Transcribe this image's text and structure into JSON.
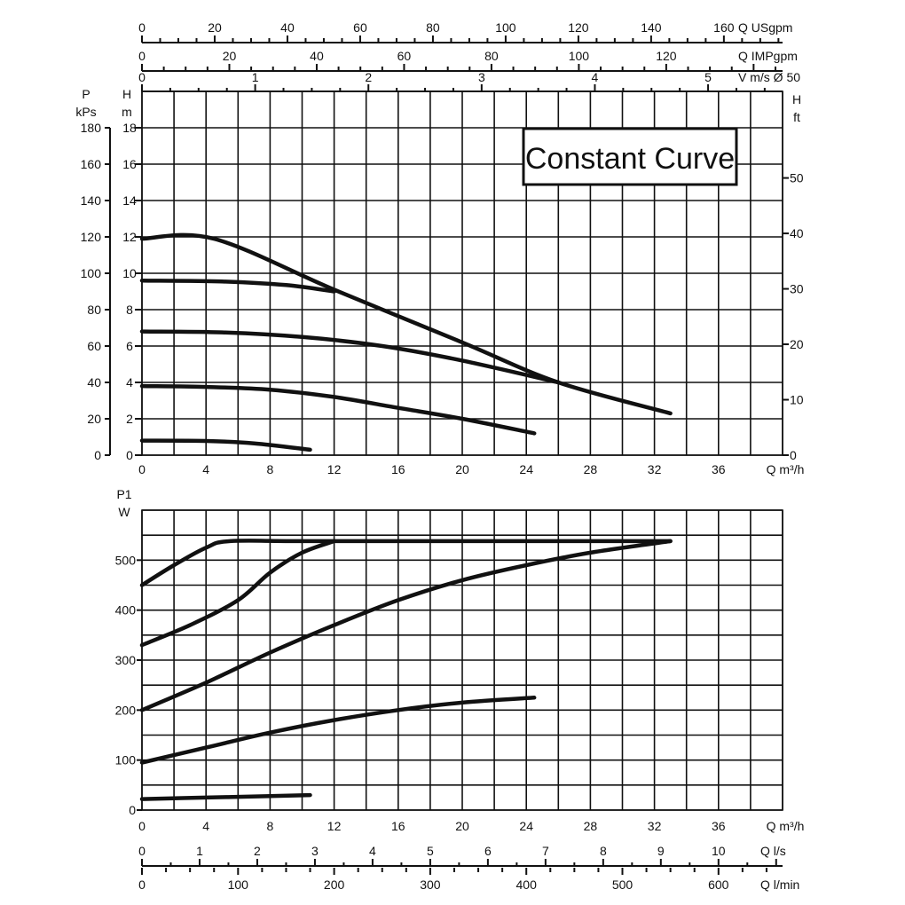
{
  "chart_data": [
    {
      "type": "line",
      "title": "Constant Curve",
      "xlabel": "Q m³/h",
      "ylabel_left_outer": [
        "P",
        "kPs"
      ],
      "ylabel_left_inner": [
        "H",
        "m"
      ],
      "ylabel_right": [
        "H",
        "ft"
      ],
      "xlim": [
        0,
        40
      ],
      "ylim": [
        0,
        20
      ],
      "grid": true,
      "x_ticks": [
        0,
        4,
        8,
        12,
        16,
        20,
        24,
        28,
        32,
        36
      ],
      "y_ticks_m": [
        0,
        2,
        4,
        6,
        8,
        10,
        12,
        14,
        16,
        18
      ],
      "y_ticks_kpa": [
        0,
        20,
        40,
        60,
        80,
        100,
        120,
        140,
        160,
        180
      ],
      "y_ticks_ft": [
        0,
        10,
        20,
        30,
        40,
        50
      ],
      "top_axes": [
        {
          "label": "Q USgpm",
          "ticks": [
            "0",
            "20",
            "40",
            "60",
            "80",
            "100",
            "120",
            "140",
            "160"
          ],
          "values": [
            0,
            20,
            40,
            60,
            80,
            100,
            120,
            140,
            160
          ]
        },
        {
          "label": "Q IMPgpm",
          "ticks": [
            "0",
            "20",
            "40",
            "60",
            "80",
            "100",
            "120"
          ],
          "values": [
            0,
            20,
            40,
            60,
            80,
            100,
            120
          ]
        },
        {
          "label": "V m/s Ø 50",
          "ticks": [
            "0",
            "1",
            "2",
            "3",
            "4",
            "5"
          ],
          "values": [
            0,
            1,
            2,
            3,
            4,
            5
          ]
        }
      ],
      "series": [
        {
          "x": [
            0,
            4.5,
            12,
            20,
            26,
            33
          ],
          "y": [
            11.9,
            11.9,
            9.1,
            6.2,
            4.0,
            2.3
          ]
        },
        {
          "x": [
            0,
            5,
            9,
            12
          ],
          "y": [
            9.6,
            9.55,
            9.35,
            9.0
          ]
        },
        {
          "x": [
            0,
            5,
            10,
            15,
            20,
            26
          ],
          "y": [
            6.8,
            6.75,
            6.5,
            6.0,
            5.2,
            4.0
          ]
        },
        {
          "x": [
            0,
            4,
            8,
            12,
            16,
            20,
            24.5
          ],
          "y": [
            3.8,
            3.75,
            3.6,
            3.2,
            2.6,
            2.0,
            1.2
          ]
        },
        {
          "x": [
            0,
            4,
            7,
            10.5
          ],
          "y": [
            0.8,
            0.78,
            0.65,
            0.3
          ]
        }
      ]
    },
    {
      "type": "line",
      "xlabel": "Q m³/h",
      "ylabel": [
        "P1",
        "W"
      ],
      "xlim": [
        0,
        40
      ],
      "ylim": [
        0,
        600
      ],
      "grid": true,
      "x_ticks": [
        0,
        4,
        8,
        12,
        16,
        20,
        24,
        28,
        32,
        36
      ],
      "y_ticks": [
        0,
        100,
        200,
        300,
        400,
        500
      ],
      "bottom_axes": [
        {
          "label": "Q l/s",
          "ticks": [
            "0",
            "1",
            "2",
            "3",
            "4",
            "5",
            "6",
            "7",
            "8",
            "9",
            "10"
          ],
          "values": [
            0,
            1,
            2,
            3,
            4,
            5,
            6,
            7,
            8,
            9,
            10
          ]
        },
        {
          "label": "Q l/min",
          "ticks": [
            "0",
            "100",
            "200",
            "300",
            "400",
            "500",
            "600"
          ],
          "values": [
            0,
            100,
            200,
            300,
            400,
            500,
            600
          ]
        }
      ],
      "series": [
        {
          "x": [
            0,
            2,
            4,
            5.5,
            10,
            20,
            33
          ],
          "y": [
            450,
            490,
            525,
            538,
            538,
            538,
            538
          ]
        },
        {
          "x": [
            0,
            3,
            6,
            8,
            10,
            12
          ],
          "y": [
            330,
            370,
            420,
            475,
            515,
            538
          ]
        },
        {
          "x": [
            0,
            4,
            8,
            12,
            16,
            20,
            24,
            28,
            33
          ],
          "y": [
            200,
            255,
            315,
            370,
            420,
            460,
            490,
            515,
            538
          ]
        },
        {
          "x": [
            0,
            4,
            8,
            12,
            16,
            20,
            24.5
          ],
          "y": [
            95,
            125,
            155,
            180,
            200,
            215,
            225
          ]
        },
        {
          "x": [
            0,
            4,
            8,
            10.5
          ],
          "y": [
            22,
            25,
            28,
            30
          ]
        }
      ]
    }
  ]
}
